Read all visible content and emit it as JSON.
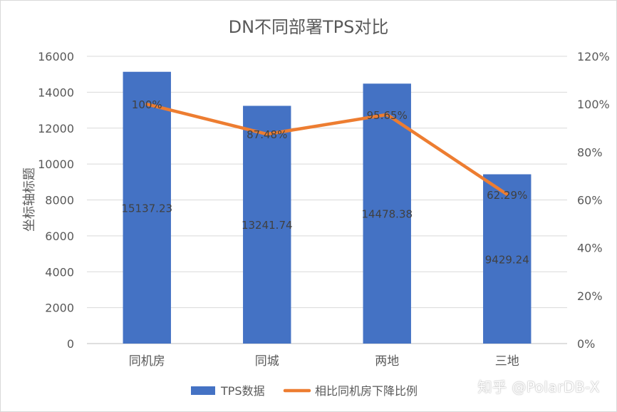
{
  "chart_data": {
    "type": "bar",
    "title": "DN不同部署TPS对比",
    "ylabel": "坐标轴标题",
    "categories": [
      "同机房",
      "同城",
      "两地",
      "三地"
    ],
    "series": [
      {
        "name": "TPS数据",
        "type": "bar",
        "axis": "left",
        "color": "#4472C4",
        "values": [
          15137.23,
          13241.74,
          14478.38,
          9429.24
        ],
        "labels": [
          "15137.23",
          "13241.74",
          "14478.38",
          "9429.24"
        ]
      },
      {
        "name": "相比同机房下降比例",
        "type": "line",
        "axis": "right",
        "color": "#ED7D31",
        "values": [
          100,
          87.48,
          95.65,
          62.29
        ],
        "labels": [
          "100%",
          "87.48%",
          "95.65%",
          "62.29%"
        ]
      }
    ],
    "ylim": [
      0,
      16000
    ],
    "yticks": [
      "0",
      "2000",
      "4000",
      "6000",
      "8000",
      "10000",
      "12000",
      "14000",
      "16000"
    ],
    "y2lim": [
      0,
      120
    ],
    "y2ticks": [
      "0%",
      "20%",
      "40%",
      "60%",
      "80%",
      "100%",
      "120%"
    ],
    "grid": true,
    "legend_position": "bottom"
  },
  "watermark": "知乎 @PolarDB-X"
}
